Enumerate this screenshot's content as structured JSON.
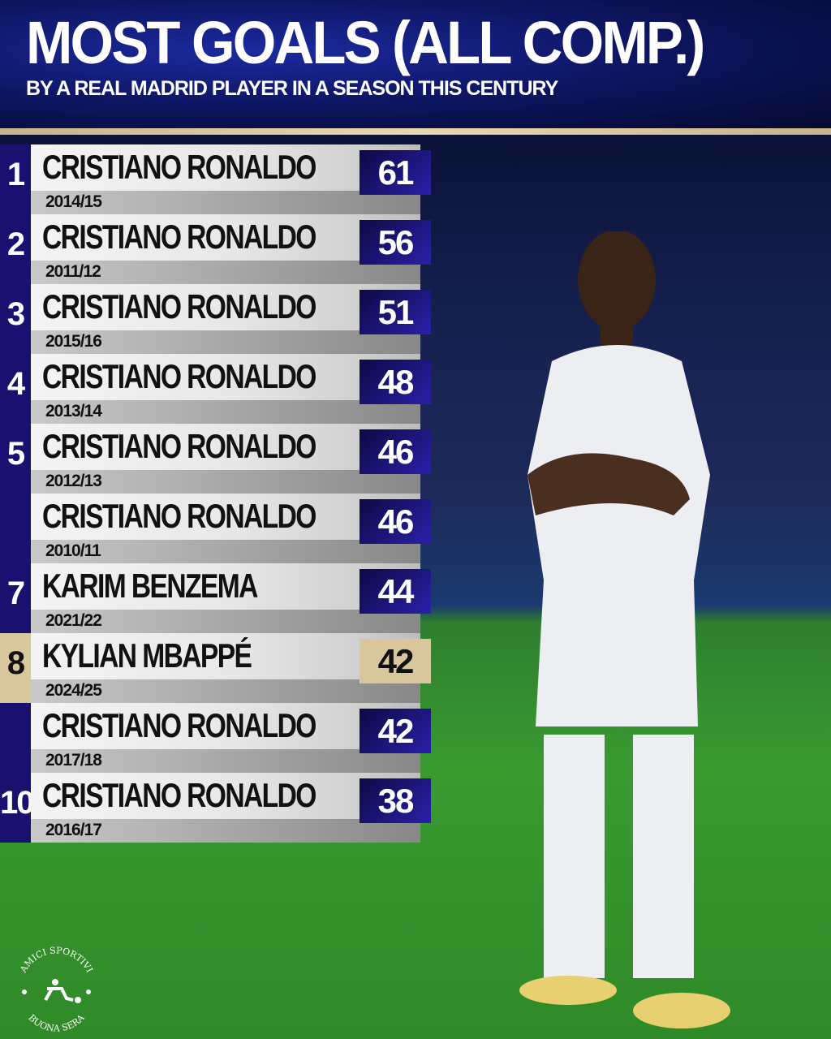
{
  "header": {
    "title": "MOST GOALS (ALL COMP.)",
    "subtitle": "BY A REAL MADRID PLAYER IN A SEASON THIS CENTURY"
  },
  "colors": {
    "rank_bg": "#1a1070",
    "goals_bg": "#2a20a8",
    "highlight": "#d8c79c",
    "gold_line": "#e8d8b0"
  },
  "rows": [
    {
      "rank": "1",
      "name": "CRISTIANO RONALDO",
      "season": "2014/15",
      "goals": "61"
    },
    {
      "rank": "2",
      "name": "CRISTIANO RONALDO",
      "season": "2011/12",
      "goals": "56"
    },
    {
      "rank": "3",
      "name": "CRISTIANO RONALDO",
      "season": "2015/16",
      "goals": "51"
    },
    {
      "rank": "4",
      "name": "CRISTIANO RONALDO",
      "season": "2013/14",
      "goals": "48"
    },
    {
      "rank": "5",
      "name": "CRISTIANO RONALDO",
      "season": "2012/13",
      "goals": "46"
    },
    {
      "rank": "",
      "name": "CRISTIANO RONALDO",
      "season": "2010/11",
      "goals": "46"
    },
    {
      "rank": "7",
      "name": "KARIM BENZEMA",
      "season": "2021/22",
      "goals": "44"
    },
    {
      "rank": "8",
      "name": "KYLIAN MBAPPÉ",
      "season": "2024/25",
      "goals": "42",
      "highlight": true
    },
    {
      "rank": "",
      "name": "CRISTIANO RONALDO",
      "season": "2017/18",
      "goals": "42"
    },
    {
      "rank": "10",
      "name": "CRISTIANO RONALDO",
      "season": "2016/17",
      "goals": "38"
    }
  ],
  "logo": {
    "text_top": "AMICI SPORTIVI",
    "text_bottom": "BUONA SERA"
  }
}
